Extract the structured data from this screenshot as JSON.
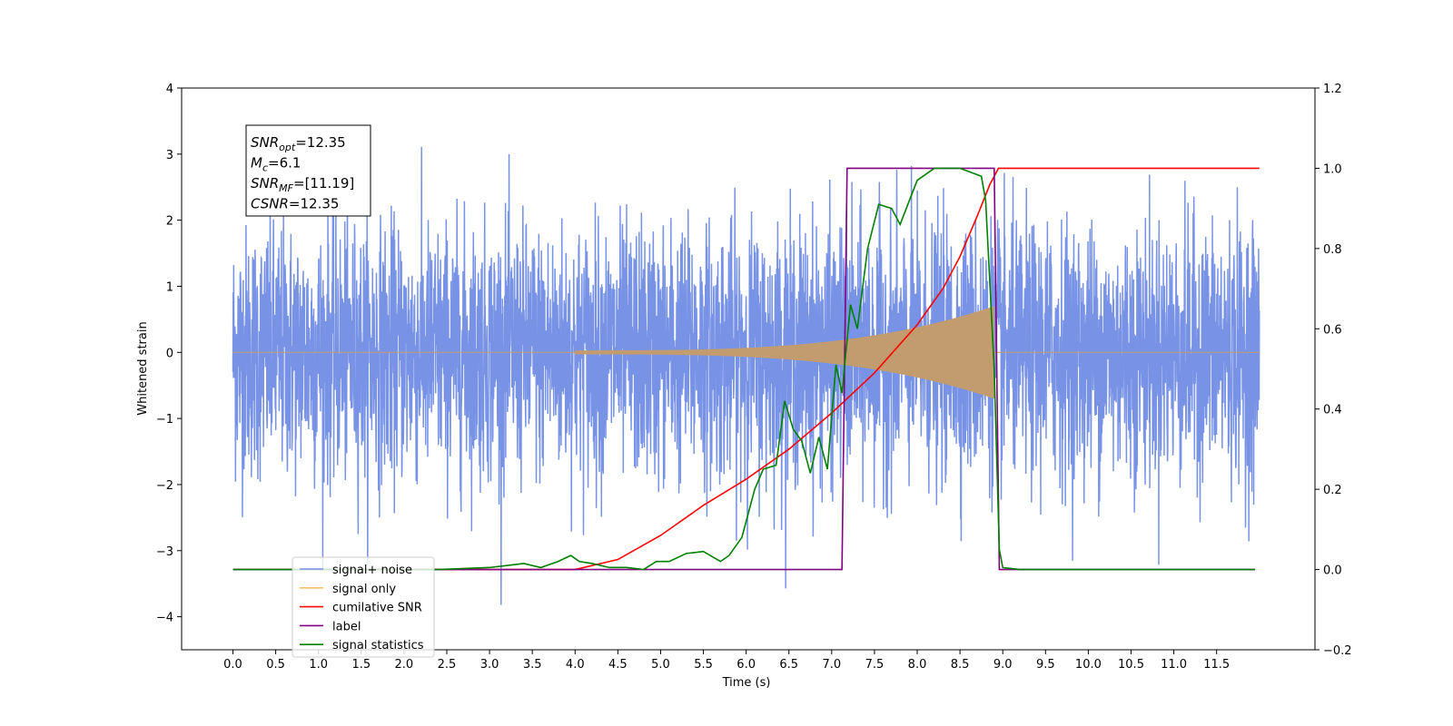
{
  "chart_data": {
    "type": "line",
    "title": "",
    "xlabel": "Time (s)",
    "ylabel": "Whitened strain",
    "xlim": [
      -0.6,
      12.65
    ],
    "ylim_left": [
      -4.5,
      4.0
    ],
    "ylim_right": [
      -0.2,
      1.2
    ],
    "x_ticks": [
      "0.0",
      "0.5",
      "1.0",
      "1.5",
      "2.0",
      "2.5",
      "3.0",
      "3.5",
      "4.0",
      "4.5",
      "5.0",
      "5.5",
      "6.0",
      "6.5",
      "7.0",
      "7.5",
      "8.0",
      "8.5",
      "9.0",
      "9.5",
      "10.0",
      "10.5",
      "11.0",
      "11.5"
    ],
    "y_ticks_left": [
      "4",
      "3",
      "2",
      "1",
      "0",
      "−1",
      "−2",
      "−3",
      "−4"
    ],
    "y_ticks_right": [
      "1.2",
      "1.0",
      "0.8",
      "0.6",
      "0.4",
      "0.2",
      "0.0",
      "−0.2"
    ],
    "legend_position": "lower-left",
    "grid": false,
    "colors": {
      "signal_noise": "#7893e6",
      "signal_only": "#f7c069",
      "cumulative_snr": "#ff0000",
      "label": "#800080",
      "signal_statistics": "#008000"
    },
    "annotation": {
      "lines": [
        {
          "sym": "SNR",
          "sub": "opt",
          "value": "=12.35"
        },
        {
          "sym": "M",
          "sub": "c",
          "value": "=6.1"
        },
        {
          "sym": "SNR",
          "sub": "MF",
          "value": "=[11.19]"
        },
        {
          "sym": "CSNR",
          "sub": "",
          "value": "=12.35"
        }
      ]
    },
    "series": [
      {
        "name": "signal+ noise",
        "axis": "left",
        "description": "white noise std≈1, range −4.1..3.6, t from 0 to 12"
      },
      {
        "name": "signal only",
        "axis": "left",
        "chirp": {
          "start": 4.0,
          "merger": 8.9,
          "peak_amplitude": 0.7
        }
      },
      {
        "name": "cumilative SNR",
        "axis": "right",
        "x": [
          0.0,
          3.0,
          4.0,
          4.5,
          5.0,
          5.5,
          6.0,
          6.5,
          7.0,
          7.5,
          8.0,
          8.3,
          8.5,
          8.7,
          8.85,
          8.95,
          12.0
        ],
        "y": [
          0.0,
          0.0,
          0.0,
          0.025,
          0.085,
          0.16,
          0.225,
          0.3,
          0.39,
          0.49,
          0.61,
          0.7,
          0.78,
          0.88,
          0.96,
          1.0,
          1.0
        ]
      },
      {
        "name": "label",
        "axis": "right",
        "x": [
          0.0,
          7.12,
          7.18,
          8.9,
          8.96,
          11.95
        ],
        "y": [
          0.0,
          0.0,
          1.0,
          1.0,
          0.0,
          0.0
        ]
      },
      {
        "name": "signal statistics",
        "axis": "right",
        "x": [
          0.0,
          2.4,
          3.0,
          3.2,
          3.4,
          3.6,
          3.8,
          3.95,
          4.05,
          4.2,
          4.4,
          4.6,
          4.8,
          4.95,
          5.1,
          5.3,
          5.5,
          5.7,
          5.8,
          5.95,
          6.1,
          6.2,
          6.35,
          6.45,
          6.55,
          6.65,
          6.75,
          6.85,
          6.95,
          7.05,
          7.12,
          7.22,
          7.3,
          7.42,
          7.55,
          7.7,
          7.8,
          8.0,
          8.2,
          8.5,
          8.75,
          8.8,
          8.9,
          8.96,
          9.0,
          9.2,
          11.95
        ],
        "y": [
          0.0,
          0.0,
          0.005,
          0.01,
          0.015,
          0.005,
          0.02,
          0.035,
          0.02,
          0.015,
          0.005,
          0.005,
          0.0,
          0.02,
          0.02,
          0.04,
          0.045,
          0.02,
          0.035,
          0.08,
          0.2,
          0.25,
          0.26,
          0.42,
          0.35,
          0.32,
          0.24,
          0.33,
          0.25,
          0.51,
          0.44,
          0.66,
          0.6,
          0.8,
          0.91,
          0.9,
          0.86,
          0.97,
          1.0,
          1.0,
          0.98,
          0.92,
          0.5,
          0.05,
          0.005,
          0.0,
          0.0
        ]
      }
    ],
    "legend_labels": [
      "signal+ noise",
      "signal only",
      "cumilative SNR",
      "label",
      "signal statistics"
    ]
  }
}
